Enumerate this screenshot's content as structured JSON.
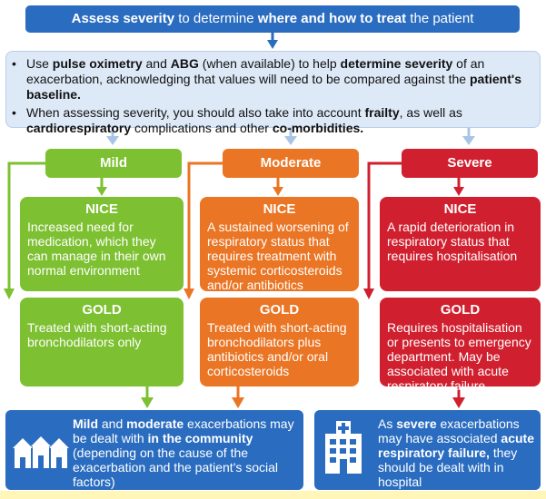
{
  "header": {
    "part1_bold": "Assess severity",
    "part2": " to determine ",
    "part3_bold": "where and how to treat",
    "part4": " the patient"
  },
  "info": {
    "bullet1": {
      "t1": "Use ",
      "b1": "pulse oximetry",
      "t2": " and ",
      "b2": "ABG",
      "t3": " (when available) to help ",
      "b3": "determine severity",
      "t4": " of an exacerbation, acknowledging that values will need to be compared against the ",
      "b4": "patient's baseline."
    },
    "bullet2": {
      "t1": "When assessing severity, you should also take into account ",
      "b1": "frailty",
      "t2": ", as well as ",
      "b2": "cardiorespiratory",
      "t3": "  complications and other ",
      "b3": "co-morbidities."
    }
  },
  "columns": {
    "mild": {
      "label": "Mild",
      "nice_title": "NICE",
      "nice_text": "Increased need for medication, which they can  manage in their own normal environment",
      "gold_title": "GOLD",
      "gold_text": "Treated with short-acting bronchodilators only"
    },
    "moderate": {
      "label": "Moderate",
      "nice_title": "NICE",
      "nice_text": "A sustained worsening of respiratory status that requires treatment with systemic corticosteroids and/or antibiotics",
      "gold_title": "GOLD",
      "gold_text": "Treated with short-acting bronchodilators plus antibiotics and/or oral corticosteroids"
    },
    "severe": {
      "label": "Severe",
      "nice_title": "NICE",
      "nice_text": "A rapid deterioration in respiratory status that requires hospitalisation",
      "gold_title": "GOLD",
      "gold_text": "Requires hospitalisation or presents to emergency department. May be associated with acute respiratory failure."
    }
  },
  "community": {
    "b1": "Mild",
    "t1": " and ",
    "b2": "moderate",
    "t2": " exacerbations may be dealt with ",
    "b3": "in the community",
    "t3": " (depending on the cause of the exacerbation and the patient's social factors)"
  },
  "hospital": {
    "t1": "As ",
    "b1": "severe",
    "t2": " exacerbations may have associated ",
    "b2": "acute respiratory failure,",
    "t3": " they should be dealt with in hospital"
  },
  "colors": {
    "blue": "#2a6cc0",
    "light_blue": "#a9c5e6",
    "green": "#7dc031",
    "orange": "#ea7524",
    "red": "#d0202f"
  },
  "icons": {
    "community": "houses-icon",
    "hospital": "hospital-icon"
  }
}
